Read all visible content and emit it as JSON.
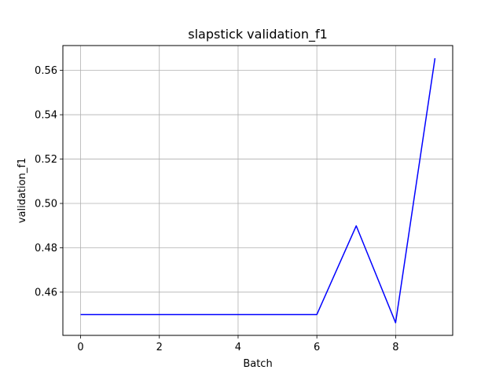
{
  "chart_data": {
    "type": "line",
    "title": "slapstick validation_f1",
    "xlabel": "Batch",
    "ylabel": "validation_f1",
    "grid": true,
    "xlim": [
      -0.45,
      9.45
    ],
    "ylim": [
      0.4405,
      0.5712
    ],
    "x_ticks": [
      0,
      2,
      4,
      6,
      8
    ],
    "x_tick_labels": [
      "0",
      "2",
      "4",
      "6",
      "8"
    ],
    "y_ticks": [
      0.46,
      0.48,
      0.5,
      0.52,
      0.54,
      0.56
    ],
    "y_tick_labels": [
      "0.46",
      "0.48",
      "0.50",
      "0.52",
      "0.54",
      "0.56"
    ],
    "series": [
      {
        "color": "#0000ff",
        "x": [
          0,
          1,
          2,
          3,
          4,
          5,
          6,
          7,
          8,
          9
        ],
        "values": [
          0.4499,
          0.4499,
          0.4499,
          0.4499,
          0.4499,
          0.4499,
          0.4499,
          0.4899,
          0.4462,
          0.5655
        ]
      }
    ]
  }
}
